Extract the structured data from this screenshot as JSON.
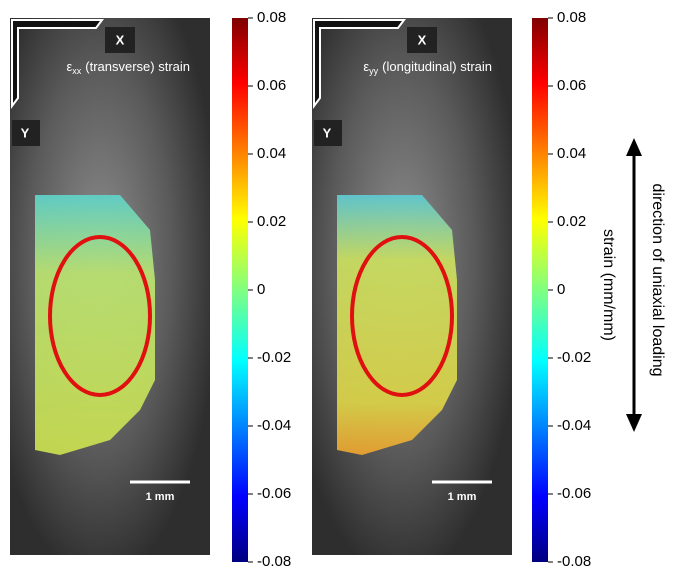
{
  "panels": [
    {
      "axis_x": "X",
      "axis_y": "Y",
      "title": {
        "symbol": "ε",
        "subscript": "xx",
        "text": "(transverse) strain"
      },
      "scale_bar": "1 mm",
      "colorbar": {
        "lim": [
          -0.08,
          0.08
        ],
        "ticks": [
          0.08,
          0.06,
          0.04,
          0.02,
          0,
          -0.02,
          -0.04,
          -0.06,
          -0.08
        ]
      }
    },
    {
      "axis_x": "X",
      "axis_y": "Y",
      "title": {
        "symbol": "ε",
        "subscript": "yy",
        "text": "(longitudinal) strain"
      },
      "scale_bar": "1 mm",
      "colorbar": {
        "lim": [
          -0.08,
          0.08
        ],
        "ticks": [
          0.08,
          0.06,
          0.04,
          0.02,
          0,
          -0.02,
          -0.04,
          -0.06,
          -0.08
        ]
      }
    }
  ],
  "colorbar_label": "strain (mm/mm)",
  "annotation": "direction of uniaxial loading"
}
